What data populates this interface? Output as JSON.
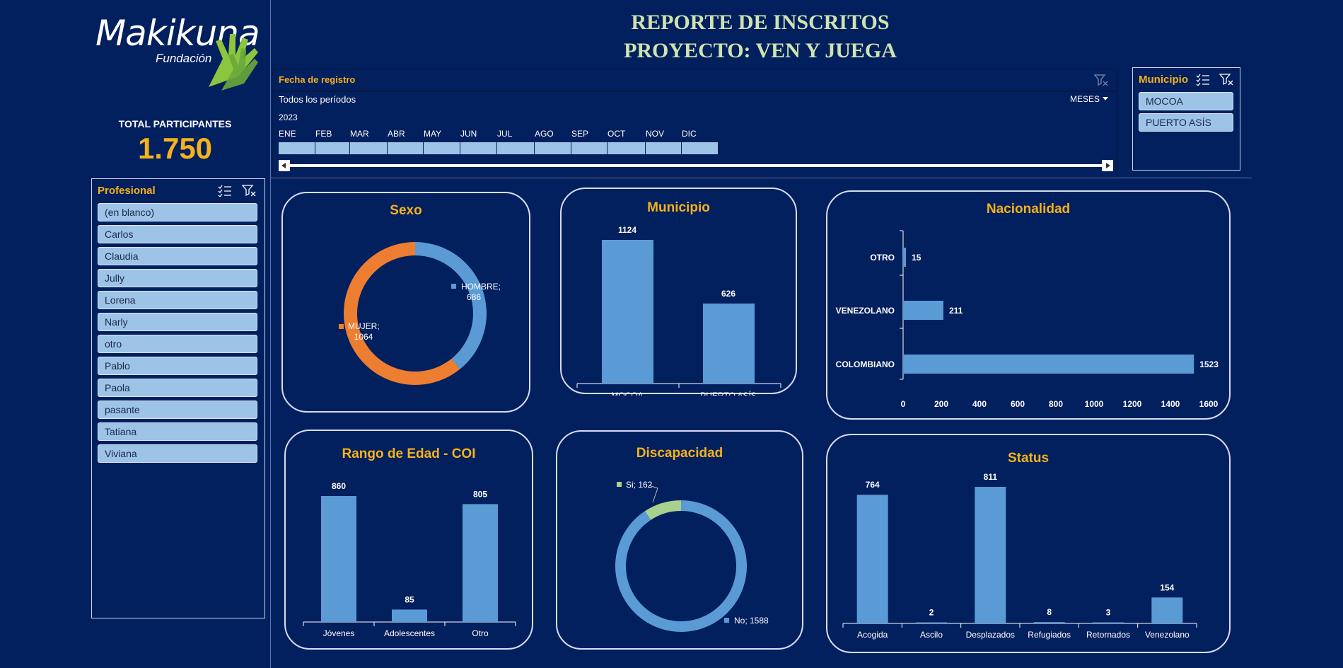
{
  "logo": {
    "brand": "Makikuna",
    "sub": "Fundación"
  },
  "header": {
    "title_line1": "REPORTE DE INSCRITOS",
    "title_line2": "PROYECTO: VEN Y JUEGA"
  },
  "total": {
    "label": "TOTAL PARTICIPANTES",
    "value": "1.750"
  },
  "timeline": {
    "title": "Fecha de registro",
    "period": "Todos los períodos",
    "unit": "MESES",
    "year": "2023",
    "months": [
      "ENE",
      "FEB",
      "MAR",
      "ABR",
      "MAY",
      "JUN",
      "JUL",
      "AGO",
      "SEP",
      "OCT",
      "NOV",
      "DIC"
    ]
  },
  "municipio_slicer": {
    "title": "Municipio",
    "items": [
      "MOCOA",
      "PUERTO ASÍS"
    ]
  },
  "profesional_slicer": {
    "title": "Profesional",
    "items": [
      "(en blanco)",
      "Carlos",
      "Claudia",
      "Jully",
      "Lorena",
      "Narly",
      "otro",
      "Pablo",
      "Paola",
      "pasante",
      "Tatiana",
      "Viviana"
    ]
  },
  "colors": {
    "background": "#021f5e",
    "accent": "#f5b21a",
    "bar": "#5b9bd5",
    "slicer_item": "#9dc3e6",
    "orange": "#ed7d31",
    "green": "#a9d18e"
  },
  "chart_data": [
    {
      "id": "sexo",
      "type": "pie",
      "title": "Sexo",
      "categories": [
        "HOMBRE",
        "MUJER"
      ],
      "values": [
        686,
        1064
      ],
      "labels": [
        "HOMBRE;",
        "MUJER;"
      ],
      "value_labels": [
        "686",
        "1064"
      ]
    },
    {
      "id": "municipio",
      "type": "bar",
      "title": "Municipio",
      "categories": [
        "MOCOA",
        "PUERTO ASÍS"
      ],
      "values": [
        1124,
        626
      ],
      "ylim": [
        0,
        1124
      ]
    },
    {
      "id": "nacionalidad",
      "type": "bar",
      "orientation": "horizontal",
      "title": "Nacionalidad",
      "categories": [
        "OTRO",
        "VENEZOLANO",
        "COLOMBIANO"
      ],
      "values": [
        15,
        211,
        1523
      ],
      "xlim": [
        0,
        1600
      ],
      "ticks": [
        "0",
        "200",
        "400",
        "600",
        "800",
        "1000",
        "1200",
        "1400",
        "1600"
      ]
    },
    {
      "id": "edad",
      "type": "bar",
      "title": "Rango de Edad - COI",
      "categories": [
        "Jóvenes",
        "Adolescentes",
        "Otro"
      ],
      "values": [
        860,
        85,
        805
      ],
      "ylim": [
        0,
        860
      ]
    },
    {
      "id": "discapacidad",
      "type": "pie",
      "title": "Discapacidad",
      "categories": [
        "Si",
        "No"
      ],
      "values": [
        162,
        1588
      ],
      "labels": [
        "Si; 162",
        "No; 1588"
      ]
    },
    {
      "id": "status",
      "type": "bar",
      "title": "Status",
      "categories": [
        "Acogida",
        "Ascilo",
        "Desplazados",
        "Refugiados",
        "Retornados",
        "Venezolano"
      ],
      "values": [
        764,
        2,
        811,
        8,
        3,
        154
      ],
      "ylim": [
        0,
        811
      ]
    }
  ]
}
